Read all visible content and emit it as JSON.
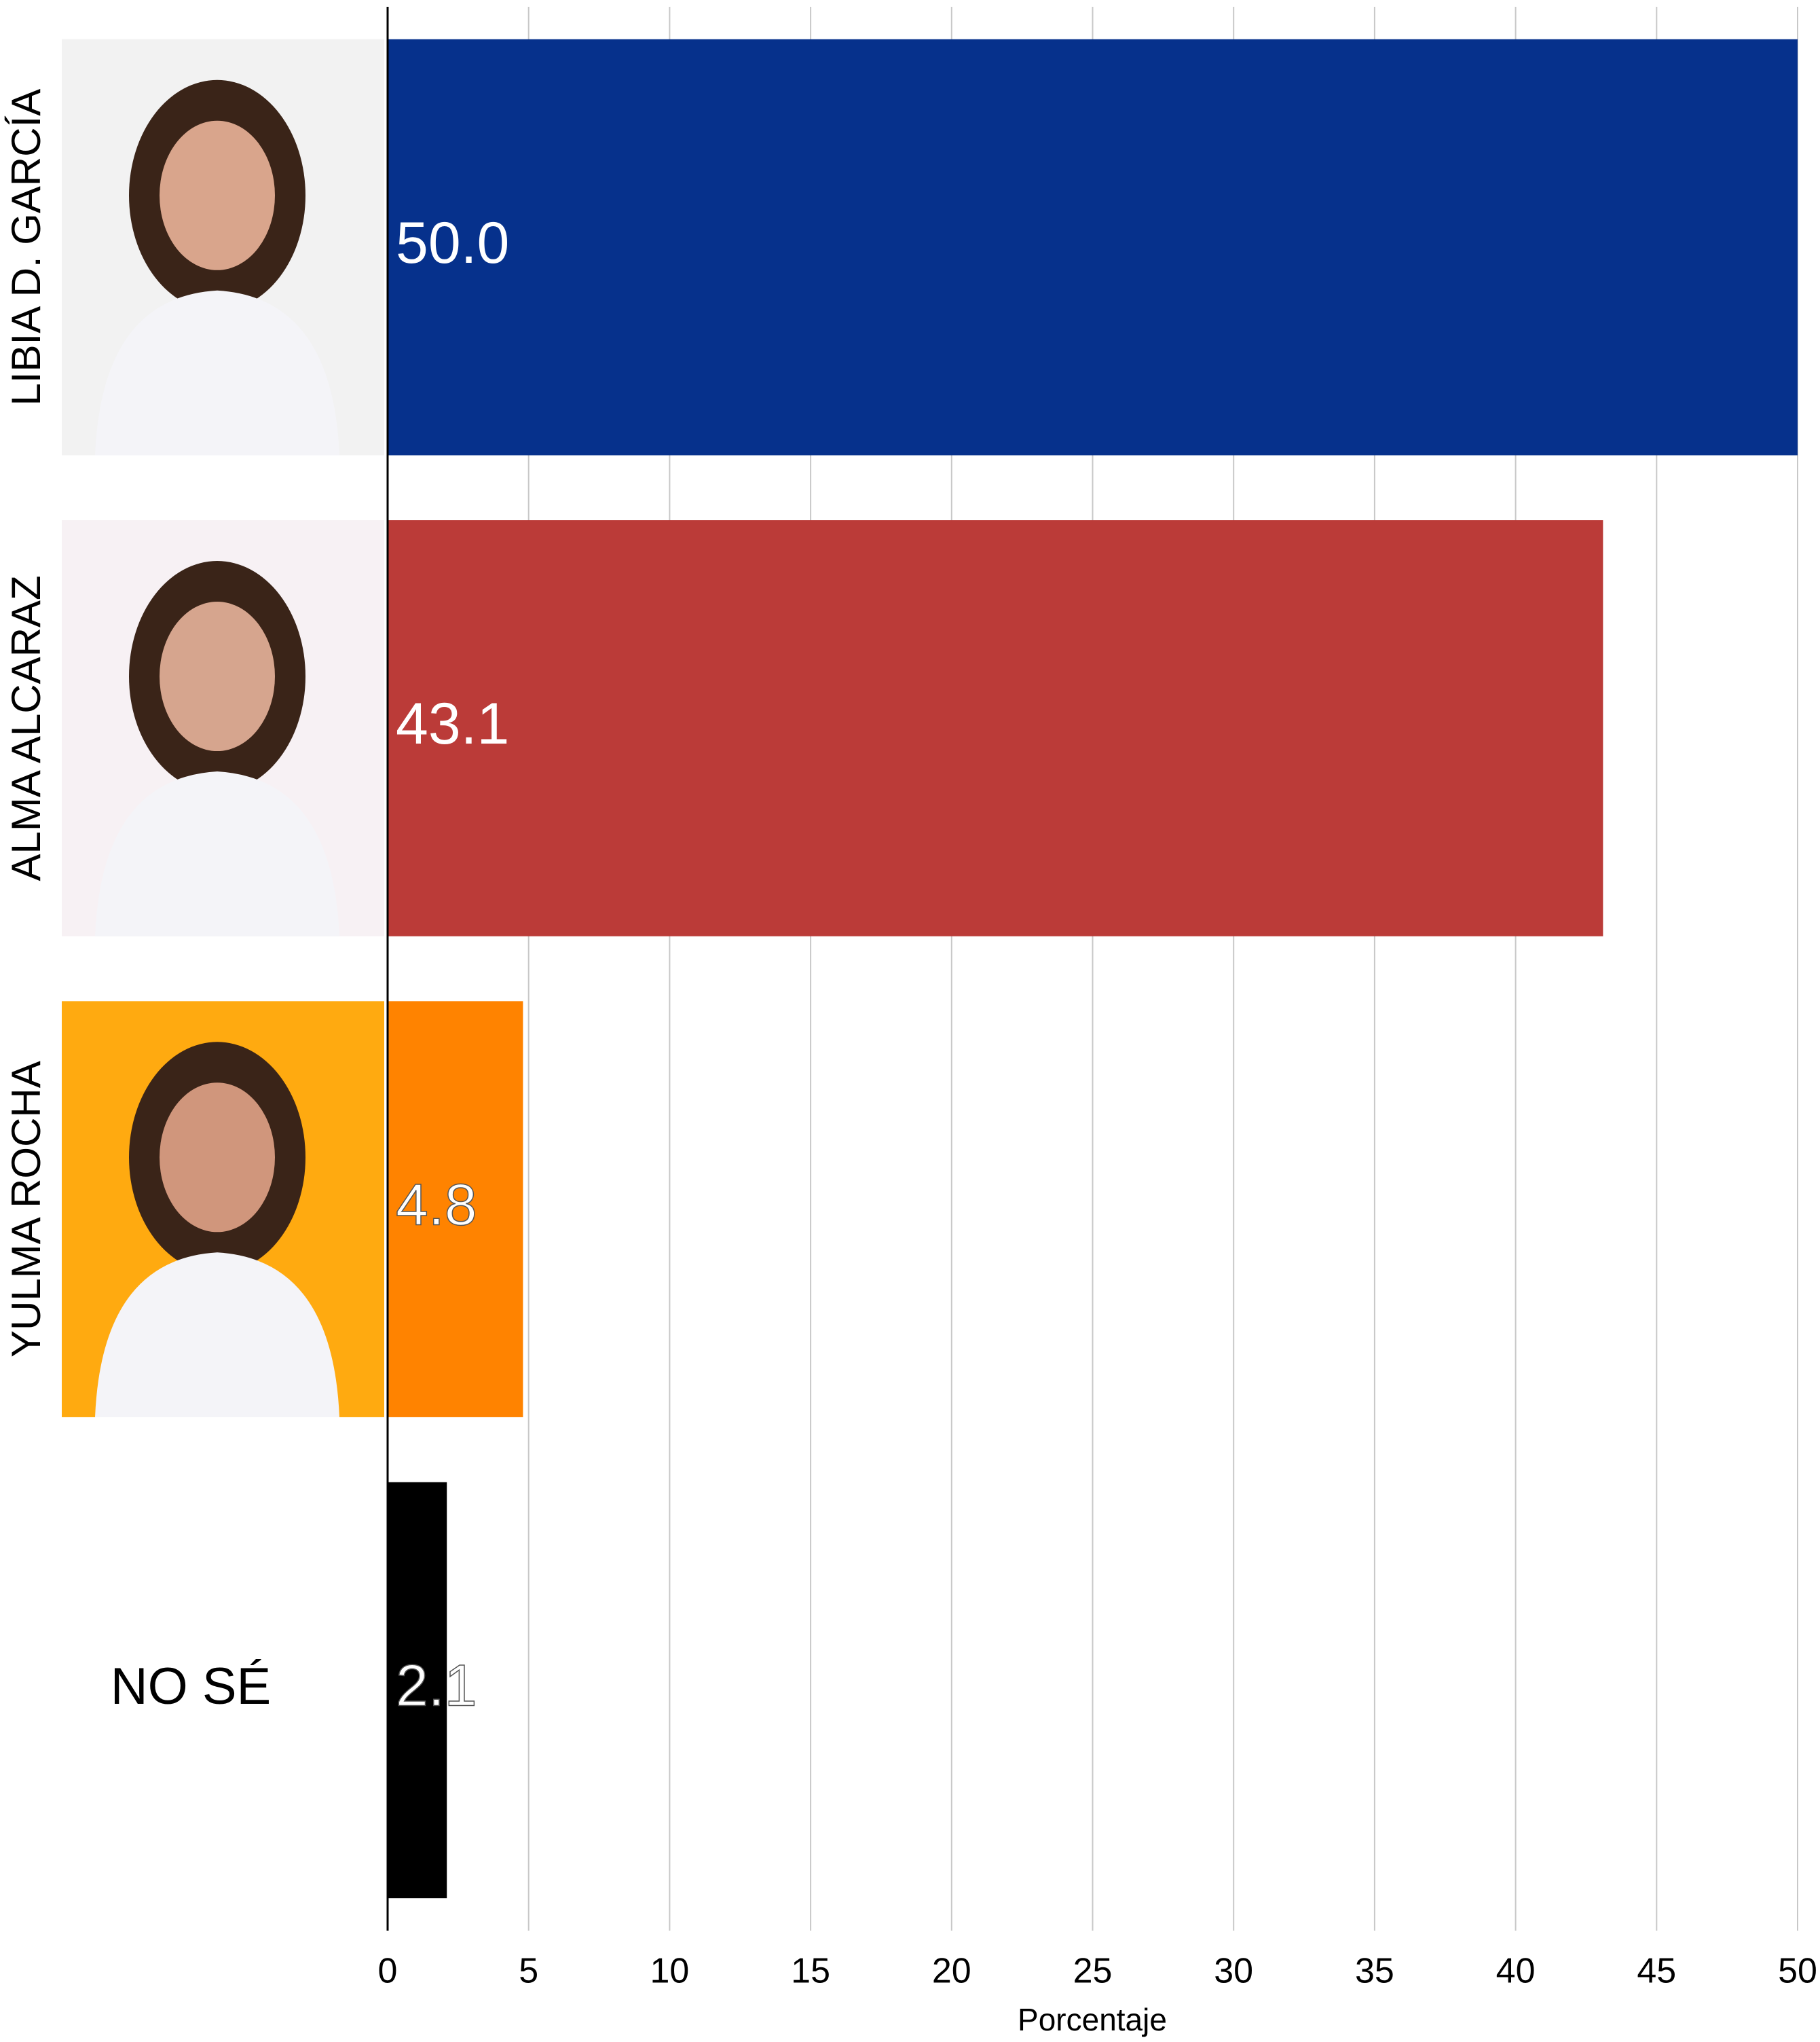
{
  "chart_data": {
    "type": "bar",
    "orientation": "horizontal",
    "categories": [
      "LIBIA D. GARCÍA",
      "ALMA ALCARAZ",
      "YULMA ROCHA",
      "NO SÉ"
    ],
    "values": [
      50.0,
      43.1,
      4.8,
      2.1
    ],
    "value_labels": [
      "50.0",
      "43.1",
      "4.8",
      "2.1"
    ],
    "colors": [
      "#06318c",
      "#bb3b38",
      "#ff8300",
      "#000000"
    ],
    "xlim": [
      0,
      50
    ],
    "xticks": [
      0,
      5,
      10,
      15,
      20,
      25,
      30,
      35,
      40,
      45,
      50
    ],
    "x_label": "Porcentaje",
    "grid": true
  }
}
